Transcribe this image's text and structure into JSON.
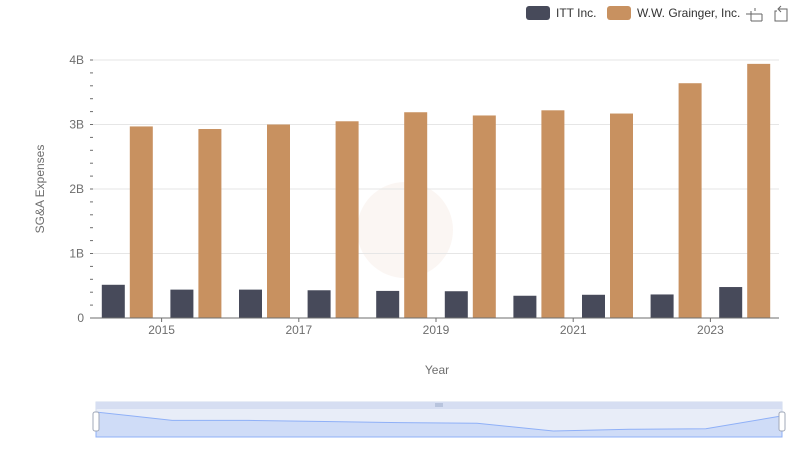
{
  "chart_data": {
    "type": "bar",
    "title": "",
    "xlabel": "Year",
    "ylabel": "SG&A Expenses",
    "ylim": [
      0,
      4000000000
    ],
    "y_ticks": [
      {
        "value": 0,
        "label": "0"
      },
      {
        "value": 1000000000,
        "label": "1B"
      },
      {
        "value": 2000000000,
        "label": "2B"
      },
      {
        "value": 3000000000,
        "label": "3B"
      },
      {
        "value": 4000000000,
        "label": "4B"
      }
    ],
    "categories": [
      "2014",
      "2015",
      "2016",
      "2017",
      "2018",
      "2019",
      "2020",
      "2021",
      "2022",
      "2023"
    ],
    "x_tick_labels": [
      "2015",
      "2017",
      "2019",
      "2021",
      "2023"
    ],
    "series": [
      {
        "name": "ITT Inc.",
        "color": "#474a5a",
        "values": [
          515000000,
          440000000,
          440000000,
          430000000,
          420000000,
          415000000,
          345000000,
          360000000,
          365000000,
          480000000
        ]
      },
      {
        "name": "W.W. Grainger, Inc.",
        "color": "#c89160",
        "values": [
          2970000000,
          2930000000,
          3000000000,
          3050000000,
          3190000000,
          3140000000,
          3220000000,
          3170000000,
          3640000000,
          3940000000
        ]
      }
    ],
    "legend_position": "top-right",
    "grid": true
  }
}
